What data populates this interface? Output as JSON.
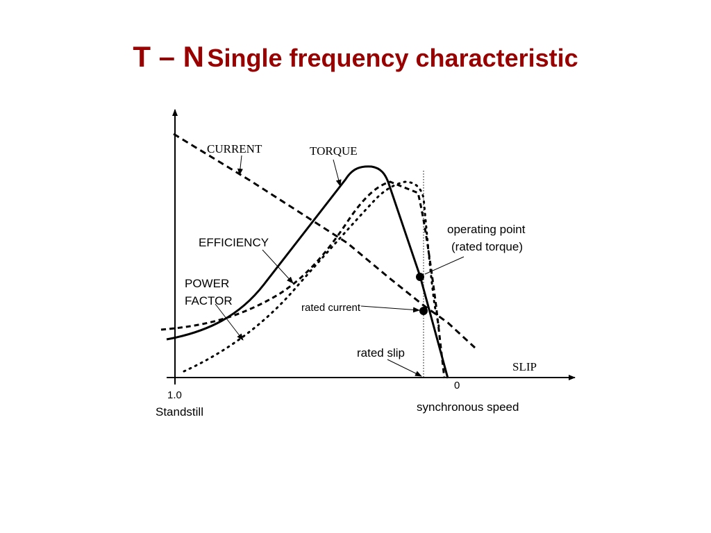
{
  "title": {
    "main": "T – N",
    "rest": "Single frequency characteristic"
  },
  "colors": {
    "title": "#990000",
    "lines": "#000000",
    "background": "#ffffff"
  },
  "labels": {
    "current": "CURRENT",
    "torque": "TORQUE",
    "efficiency": "EFFICIENCY",
    "power_factor_line1": "POWER",
    "power_factor_line2": "FACTOR",
    "operating_point_line1": "operating point",
    "operating_point_line2": "(rated torque)",
    "rated_current": "rated current",
    "rated_slip": "rated slip",
    "slip_axis": "SLIP",
    "x_left_tick": "1.0",
    "x_left_caption": "Standstill",
    "x_right_tick": "0",
    "x_right_caption": "synchronous speed"
  }
}
